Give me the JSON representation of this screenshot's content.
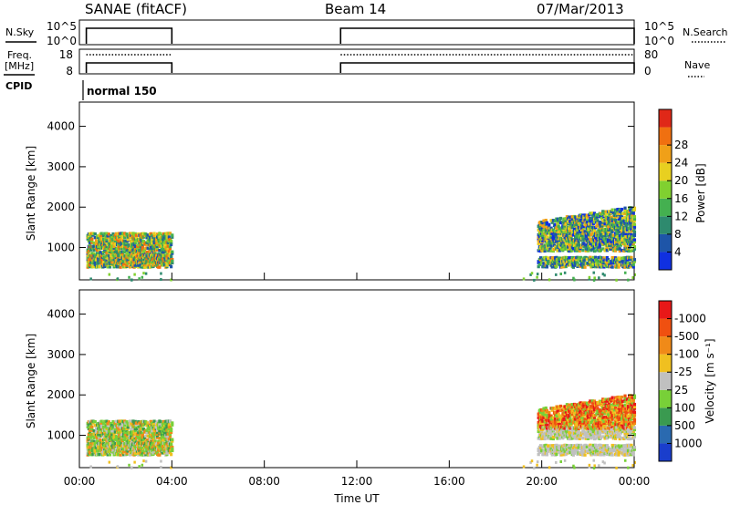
{
  "header": {
    "station": "SANAE (fitACF)",
    "beam": "Beam 14",
    "date": "07/Mar/2013"
  },
  "sky_panel": {
    "label_left": "N.Sky",
    "label_right": "N.Search",
    "left_ticks": [
      "10^5",
      "10^0"
    ],
    "right_ticks": [
      "10^5",
      "10^0"
    ]
  },
  "freq_panel": {
    "label_left_1": "Freq.",
    "label_left_2": "[MHz]",
    "label_right": "Nave",
    "left_ticks": [
      "18",
      "8"
    ],
    "right_ticks": [
      "80",
      "0"
    ]
  },
  "cpid_panel": {
    "label": "CPID",
    "mode": "normal 150"
  },
  "chart_data": [
    {
      "type": "heatmap",
      "panel": "power",
      "ylabel": "Slant Range [km]",
      "yticks": [
        "1000",
        "2000",
        "3000",
        "4000"
      ],
      "ylim": [
        200,
        4600
      ],
      "xlim": [
        0,
        24
      ],
      "colorbar_label": "Power [dB]",
      "colorbar_ticks": [
        "4",
        "8",
        "12",
        "16",
        "20",
        "24",
        "28"
      ],
      "colorbar_colors": [
        "#1030e0",
        "#1e55a8",
        "#2e8a6e",
        "#44b050",
        "#80d030",
        "#e8d020",
        "#f0a018",
        "#f07010",
        "#e02818"
      ],
      "patches": [
        {
          "x0": 0.3,
          "x1": 4.0,
          "y0": 550,
          "y1": 1500,
          "dominant": "mixed green/orange"
        },
        {
          "x0": 19.8,
          "x1": 24.0,
          "y0": 500,
          "y1": 2100,
          "dominant": "blue/green"
        }
      ]
    },
    {
      "type": "heatmap",
      "panel": "velocity",
      "ylabel": "Slant Range [km]",
      "yticks": [
        "1000",
        "2000",
        "3000",
        "4000"
      ],
      "ylim": [
        200,
        4600
      ],
      "xlim": [
        0,
        24
      ],
      "xticks": [
        "00:00",
        "04:00",
        "08:00",
        "12:00",
        "16:00",
        "20:00",
        "00:00"
      ],
      "xlabel": "Time UT",
      "colorbar_label": "Velocity [m s⁻¹]",
      "colorbar_ticks": [
        "1000",
        "500",
        "100",
        "25",
        "-25",
        "-100",
        "-500",
        "-1000"
      ],
      "colorbar_colors": [
        "#1a3ecc",
        "#2a6ab0",
        "#3a9a50",
        "#78d038",
        "#c0c0c0",
        "#f0c020",
        "#f08a18",
        "#f05010",
        "#e81818"
      ],
      "patches": [
        {
          "x0": 0.3,
          "x1": 4.0,
          "y0": 550,
          "y1": 1500,
          "dominant": "green"
        },
        {
          "x0": 19.8,
          "x1": 24.0,
          "y0": 500,
          "y1": 2100,
          "dominant": "grey/orange"
        }
      ]
    }
  ],
  "activity": [
    [
      0.3,
      4.0
    ],
    [
      11.3,
      24.0
    ]
  ]
}
